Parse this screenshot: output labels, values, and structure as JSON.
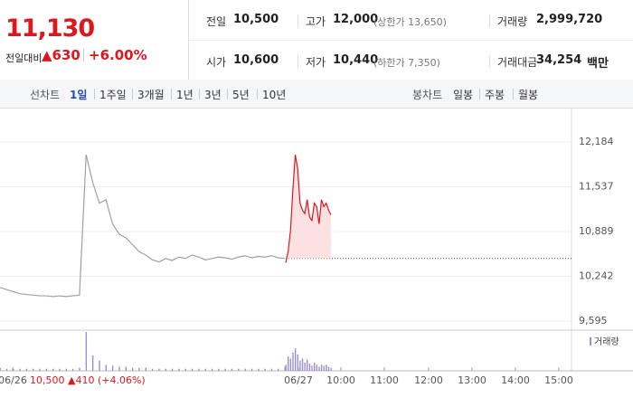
{
  "header": {
    "price": "11,130",
    "change_label": "전일대비",
    "change": "▲630",
    "change_pct": "+6.00%"
  },
  "stats": [
    [
      {
        "label": "전일",
        "value": "10,500"
      },
      {
        "label": "고가",
        "value": "12,000",
        "extra": "(상한가 13,650)"
      },
      {
        "label": "거래량",
        "value": "2,999,720"
      }
    ],
    [
      {
        "label": "시가",
        "value": "10,600"
      },
      {
        "label": "저가",
        "value": "10,440",
        "extra": "(하한가 7,350)"
      },
      {
        "label": "거래대금",
        "value": "34,254",
        "unit": "백만"
      }
    ]
  ],
  "tabs": {
    "line_label": "선차트",
    "periods": [
      "1일",
      "1주일",
      "3개월",
      "1년",
      "3년",
      "5년",
      "10년"
    ],
    "candle_label": "봉차트",
    "candle_periods": [
      "일봉",
      "주봉",
      "월봉"
    ]
  },
  "chart_data": {
    "type": "line",
    "ylim": [
      9595,
      12184
    ],
    "yticks": [
      {
        "value": 12184,
        "label": "12,184"
      },
      {
        "value": 11537,
        "label": "11,537"
      },
      {
        "value": 10889,
        "label": "10,889"
      },
      {
        "value": 10242,
        "label": "10,242"
      },
      {
        "value": 9595,
        "label": "9,595"
      }
    ],
    "reference": 10500,
    "x_labels": [
      "06/26",
      "06/27",
      "10:00",
      "11:00",
      "12:00",
      "13:00",
      "14:00",
      "15:00"
    ],
    "prev_close_note": "10,500 ▲410 (+4.06%)",
    "volume_legend": "거래량",
    "series": [
      {
        "name": "06/26",
        "color": "#a0a0a0",
        "values": [
          10080,
          10050,
          10020,
          9990,
          9980,
          9970,
          9960,
          9960,
          9950,
          9960,
          9950,
          9960,
          9970,
          12000,
          11600,
          11300,
          11350,
          11000,
          10850,
          10800,
          10700,
          10600,
          10550,
          10480,
          10450,
          10500,
          10470,
          10520,
          10500,
          10550,
          10520,
          10480,
          10500,
          10520,
          10510,
          10490,
          10520,
          10540,
          10510,
          10530,
          10520,
          10540,
          10510,
          10500
        ],
        "volume": [
          3,
          2,
          2,
          2,
          2,
          2,
          2,
          2,
          2,
          2,
          2,
          2,
          3,
          38,
          15,
          10,
          6,
          5,
          4,
          4,
          3,
          3,
          3,
          2,
          2,
          2,
          2,
          2,
          2,
          2,
          2,
          2,
          2,
          2,
          2,
          2,
          2,
          2,
          2,
          2,
          2,
          2,
          2,
          4
        ]
      },
      {
        "name": "06/27",
        "color": "#e0161e",
        "values": [
          10440,
          10600,
          10900,
          11500,
          12000,
          11800,
          11300,
          11200,
          11150,
          11350,
          11100,
          11050,
          11300,
          11250,
          11000,
          11350,
          11250,
          11300,
          11200,
          11130
        ],
        "volume": [
          6,
          14,
          12,
          18,
          22,
          16,
          10,
          12,
          8,
          11,
          7,
          5,
          8,
          6,
          4,
          6,
          5,
          6,
          4,
          3
        ]
      }
    ]
  }
}
